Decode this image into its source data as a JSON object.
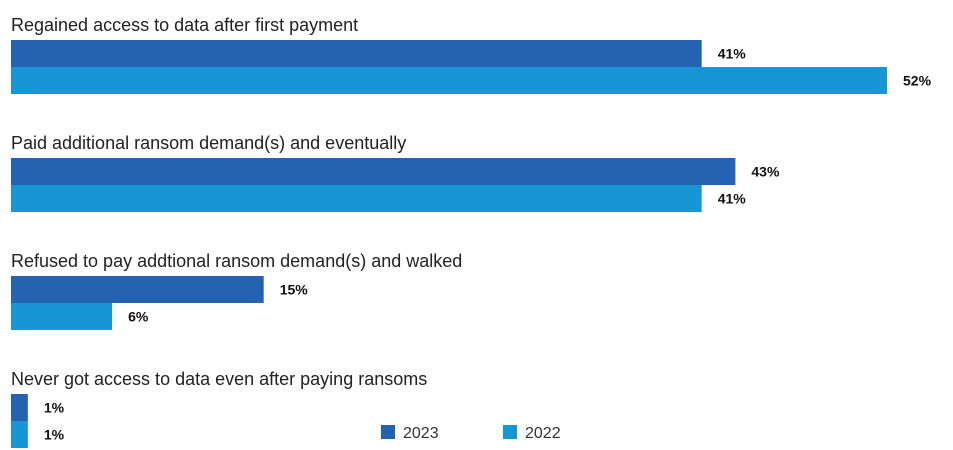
{
  "chart_data": {
    "type": "bar",
    "orientation": "horizontal",
    "categories": [
      "Regained access to data after first payment",
      "Paid additional ransom demand(s) and eventually",
      "Refused to pay addtional ransom demand(s) and walked",
      "Never got access to data even after paying ransoms"
    ],
    "series": [
      {
        "name": "2023",
        "values": [
          41,
          43,
          15,
          1
        ],
        "color": "#2563b0",
        "labels": [
          "41%",
          "43%",
          "15%",
          "1%"
        ]
      },
      {
        "name": "2022",
        "values": [
          52,
          41,
          6,
          1
        ],
        "color": "#1796d6",
        "labels": [
          "52%",
          "41%",
          "6%",
          "1%"
        ]
      }
    ],
    "xlim": [
      0,
      52
    ],
    "value_suffix": "%",
    "legend_position": "bottom-center",
    "grid": false
  }
}
